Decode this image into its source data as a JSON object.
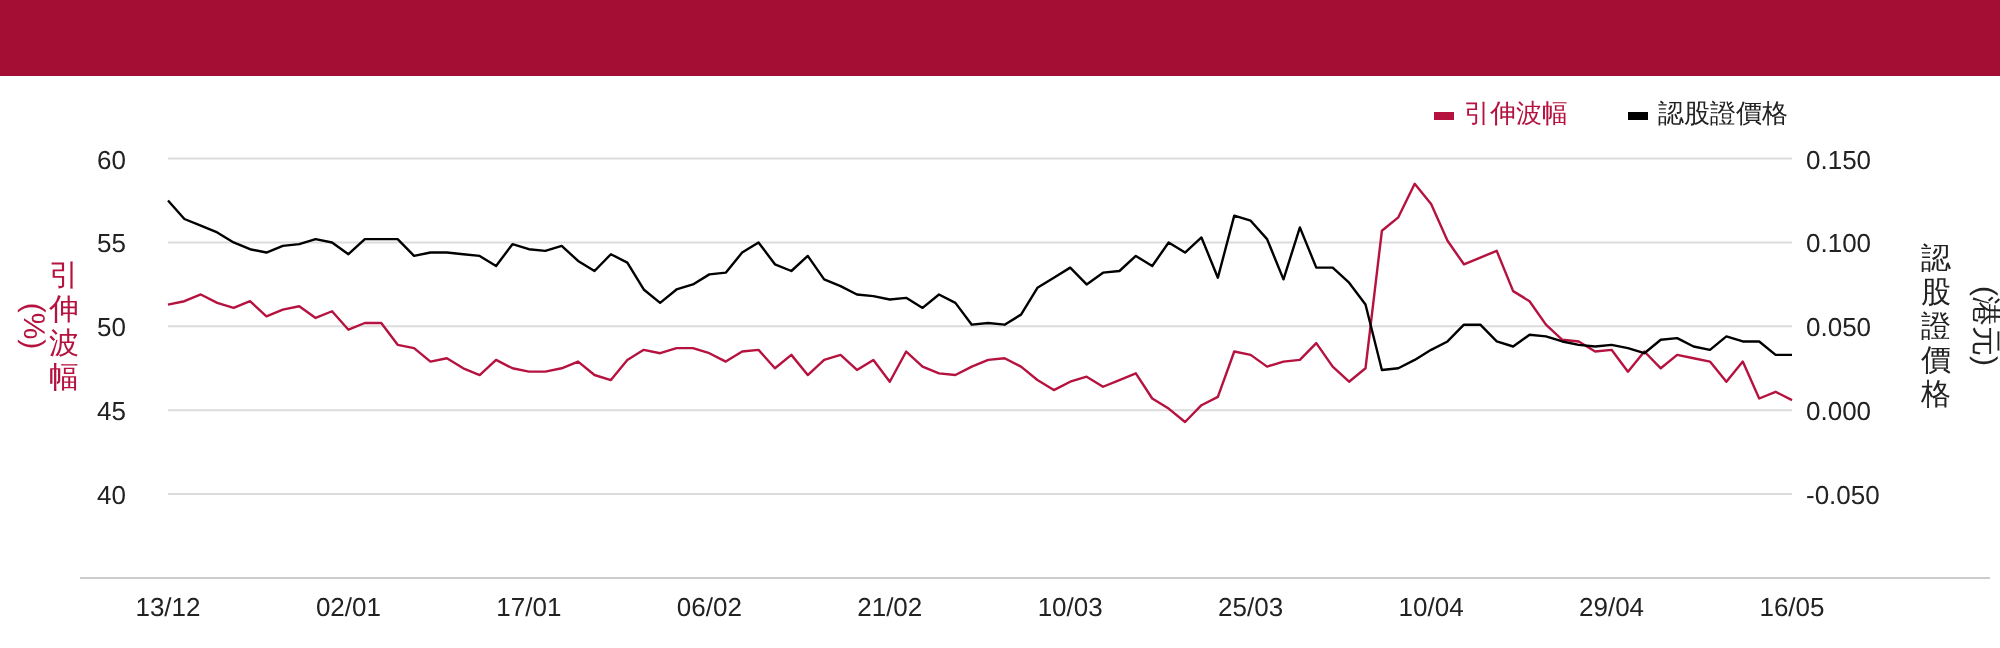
{
  "chart_data": {
    "type": "line",
    "categories": [
      "13/12",
      null,
      null,
      null,
      null,
      null,
      null,
      null,
      null,
      null,
      null,
      "02/01",
      null,
      null,
      null,
      null,
      null,
      null,
      null,
      null,
      null,
      null,
      "17/01",
      null,
      null,
      null,
      null,
      null,
      null,
      null,
      null,
      null,
      null,
      "06/02",
      null,
      null,
      null,
      null,
      null,
      null,
      null,
      null,
      null,
      null,
      "21/02",
      null,
      null,
      null,
      null,
      null,
      null,
      null,
      null,
      null,
      null,
      "10/03",
      null,
      null,
      null,
      null,
      null,
      null,
      null,
      null,
      null,
      null,
      "25/03",
      null,
      null,
      null,
      null,
      null,
      null,
      null,
      null,
      null,
      null,
      "10/04",
      null,
      null,
      null,
      null,
      null,
      null,
      null,
      null,
      null,
      null,
      "29/04",
      null,
      null,
      null,
      null,
      null,
      null,
      null,
      null,
      null,
      null,
      "16/05"
    ],
    "series": [
      {
        "name": "引伸波幅",
        "color": "#b5123f",
        "axis": "y",
        "values": [
          51.3,
          51.5,
          51.9,
          51.4,
          51.1,
          51.5,
          50.6,
          51.0,
          51.2,
          50.5,
          50.9,
          49.8,
          50.2,
          50.2,
          48.9,
          48.7,
          47.9,
          48.1,
          47.5,
          47.1,
          48.0,
          47.5,
          47.3,
          47.3,
          47.5,
          47.9,
          47.1,
          46.8,
          48.0,
          48.6,
          48.4,
          48.7,
          48.7,
          48.4,
          47.9,
          48.5,
          48.6,
          47.5,
          48.3,
          47.1,
          48.0,
          48.3,
          47.4,
          48.0,
          46.7,
          48.5,
          47.6,
          47.2,
          47.1,
          47.6,
          48.0,
          48.1,
          47.6,
          46.8,
          46.2,
          46.7,
          47.0,
          46.4,
          46.8,
          47.2,
          45.7,
          45.1,
          44.3,
          45.3,
          45.8,
          48.5,
          48.3,
          47.6,
          47.9,
          48.0,
          49.0,
          47.6,
          46.7,
          47.5,
          55.7,
          56.5,
          58.5,
          57.3,
          55.1,
          53.7,
          54.1,
          54.5,
          52.1,
          51.5,
          50.1,
          49.2,
          49.1,
          48.5,
          48.6,
          47.3,
          48.5,
          47.5,
          48.3,
          48.1,
          47.9,
          46.7,
          47.9,
          45.7,
          46.1,
          45.6
        ]
      },
      {
        "name": "認股證價格",
        "color": "#000000",
        "axis": "y2",
        "values": [
          0.125,
          0.114,
          0.11,
          0.106,
          0.1,
          0.096,
          0.094,
          0.098,
          0.099,
          0.102,
          0.1,
          0.093,
          0.102,
          0.102,
          0.102,
          0.092,
          0.094,
          0.094,
          0.093,
          0.092,
          0.086,
          0.099,
          0.096,
          0.095,
          0.098,
          0.089,
          0.083,
          0.093,
          0.088,
          0.072,
          0.064,
          0.072,
          0.075,
          0.081,
          0.082,
          0.094,
          0.1,
          0.087,
          0.083,
          0.092,
          0.078,
          0.074,
          0.069,
          0.068,
          0.066,
          0.067,
          0.061,
          0.069,
          0.064,
          0.051,
          0.052,
          0.051,
          0.057,
          0.073,
          0.079,
          0.085,
          0.075,
          0.082,
          0.083,
          0.092,
          0.086,
          0.1,
          0.094,
          0.103,
          0.079,
          0.116,
          0.113,
          0.102,
          0.078,
          0.109,
          0.085,
          0.085,
          0.076,
          0.063,
          0.024,
          0.025,
          0.03,
          0.036,
          0.041,
          0.051,
          0.051,
          0.041,
          0.038,
          0.045,
          0.044,
          0.041,
          0.039,
          0.038,
          0.039,
          0.037,
          0.034,
          0.042,
          0.043,
          0.038,
          0.036,
          0.044,
          0.041,
          0.041,
          0.033,
          0.033
        ]
      }
    ],
    "ylim": [
      35,
      60
    ],
    "yticks": [
      40,
      45,
      50,
      55,
      60
    ],
    "y2lim": [
      -0.1,
      0.15
    ],
    "y2ticks": [
      {
        "value": -0.05,
        "label": "-0.050"
      },
      {
        "value": 0,
        "label": "0.000"
      },
      {
        "value": 0.05,
        "label": "0.050"
      },
      {
        "value": 0.1,
        "label": "0.100"
      },
      {
        "value": 0.15,
        "label": "0.150"
      }
    ],
    "ylabel": "引伸波幅 (%)",
    "y2label": "認股證價格 (港元)",
    "grid": "y",
    "legend": "top right"
  }
}
